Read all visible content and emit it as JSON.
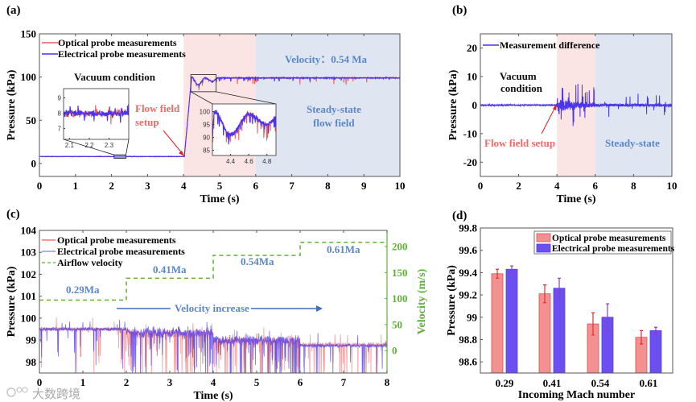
{
  "panel_labels": [
    "(a)",
    "(b)",
    "(c)",
    "(d)"
  ],
  "watermark": "大数跨境",
  "colors": {
    "optical": "#f05a5a",
    "electrical": "#4a34ee",
    "setup_region": "#fbe4e4",
    "steady_region": "#dfe6f2",
    "annotation_blue": "#5b86c8",
    "annotation_red": "#f06a6a",
    "velocity_green": "#5fb03a",
    "optical_bar": "#f39090",
    "electrical_bar": "#6b4ff0"
  },
  "chart_data": [
    {
      "type": "line",
      "title": "(a)",
      "xlabel": "Time (s)",
      "ylabel": "Pressure (kPa)",
      "xlim": [
        0,
        10
      ],
      "ylim": [
        -15,
        150
      ],
      "xticks": [
        0,
        1,
        2,
        3,
        4,
        5,
        6,
        7,
        8,
        9,
        10
      ],
      "yticks": [
        0,
        50,
        100,
        150
      ],
      "legend": [
        "Optical probe measurements",
        "Electrical probe measurements"
      ],
      "legend_position": "top-left",
      "profile": {
        "vacuum_level": 8,
        "rise_start": 4.02,
        "rise_end": 4.22,
        "peak": 100,
        "dip_at_4_4": 91,
        "at_4_6": 99,
        "at_4_8": 95,
        "steady_level": 99
      },
      "regions": [
        {
          "x": [
            4,
            6
          ],
          "label_lines": [
            "Flow field",
            "setup"
          ]
        },
        {
          "x": [
            6,
            10
          ],
          "label_lines": [
            "Steady-state",
            "flow field"
          ]
        }
      ],
      "annotations": {
        "vacuum": "Vacuum condition",
        "velocity": "Velocity：0.54 Ma"
      },
      "insets": [
        {
          "xlim": [
            2.07,
            2.4
          ],
          "ylim": [
            6.3,
            9.6
          ],
          "xticks": [
            2.1,
            2.2,
            2.3
          ],
          "yticks": [
            7,
            8,
            9
          ]
        },
        {
          "xlim": [
            4.2,
            4.9
          ],
          "ylim": [
            83,
            103
          ],
          "xticks": [
            4.4,
            4.6,
            4.8
          ],
          "yticks": [
            85,
            90,
            95,
            100
          ]
        }
      ]
    },
    {
      "type": "line",
      "title": "(b)",
      "xlabel": "Time (s)",
      "ylabel": "Pressure (kPa)",
      "xlim": [
        0,
        10
      ],
      "ylim": [
        -25,
        25
      ],
      "xticks": [
        0,
        2,
        4,
        6,
        8,
        10
      ],
      "yticks": [
        -20,
        -10,
        0,
        10,
        20
      ],
      "legend": [
        "Measurement difference"
      ],
      "legend_position": "top-left",
      "profile": {
        "vacuum_amplitude": 0.3,
        "setup_peak": 7,
        "setup_min": -9,
        "steady_amplitude": 4
      },
      "regions": [
        {
          "x": [
            4,
            6
          ],
          "label": "Flow field setup"
        },
        {
          "x": [
            6,
            10
          ],
          "label": "Steady-state"
        }
      ],
      "annotations": {
        "vacuum_lines": [
          "Vacuum",
          "condition"
        ]
      }
    },
    {
      "type": "line",
      "title": "(c)",
      "xlabel": "Time (s)",
      "ylabel": "Pressure (kPa)",
      "y2label": "Velocity (m/s)",
      "xlim": [
        0,
        8
      ],
      "ylim": [
        97.5,
        104
      ],
      "y2lim": [
        -43,
        231
      ],
      "xticks": [
        0,
        1,
        2,
        3,
        4,
        5,
        6,
        7,
        8
      ],
      "yticks": [
        98,
        99,
        100,
        101,
        102,
        103,
        104
      ],
      "y2ticks": [
        0,
        50,
        100,
        150,
        200
      ],
      "legend": [
        "Optical probe measurements",
        "Electrical probe measurements",
        "Airflow velocity"
      ],
      "legend_position": "top-left",
      "segments": [
        {
          "t": [
            0,
            2
          ],
          "mach": "0.29Ma",
          "velocity": 97,
          "optical_mean": 99.5,
          "electrical_mean": 99.5
        },
        {
          "t": [
            2,
            4
          ],
          "mach": "0.41Ma",
          "velocity": 139,
          "optical_mean": 99.3,
          "electrical_mean": 99.35
        },
        {
          "t": [
            4,
            6
          ],
          "mach": "0.54Ma",
          "velocity": 183,
          "optical_mean": 98.95,
          "electrical_mean": 99.0
        },
        {
          "t": [
            6,
            8
          ],
          "mach": "0.61Ma",
          "velocity": 208,
          "optical_mean": 98.8,
          "electrical_mean": 98.75
        }
      ],
      "annotations": {
        "arrow": "Velocity increase"
      }
    },
    {
      "type": "bar",
      "title": "(d)",
      "xlabel": "Incoming Mach number",
      "ylabel": "Pressure (kPa)",
      "ylim": [
        98.5,
        99.8
      ],
      "yticks": [
        98.6,
        98.8,
        99,
        99.2,
        99.4,
        99.6,
        99.8
      ],
      "ytick_labels": [
        "98.6",
        "98.8",
        "99",
        "99.2",
        "99.4",
        "99.6",
        "99.8"
      ],
      "categories": [
        "0.29",
        "0.41",
        "0.54",
        "0.61"
      ],
      "legend_position": "top-right",
      "series": [
        {
          "name": "Optical probe measurements",
          "values": [
            99.39,
            99.21,
            98.94,
            98.82
          ],
          "errors": [
            0.04,
            0.08,
            0.1,
            0.06
          ]
        },
        {
          "name": "Electrical probe measurements",
          "values": [
            99.43,
            99.26,
            99.0,
            98.88
          ],
          "errors": [
            0.03,
            0.09,
            0.12,
            0.03
          ]
        }
      ]
    }
  ]
}
